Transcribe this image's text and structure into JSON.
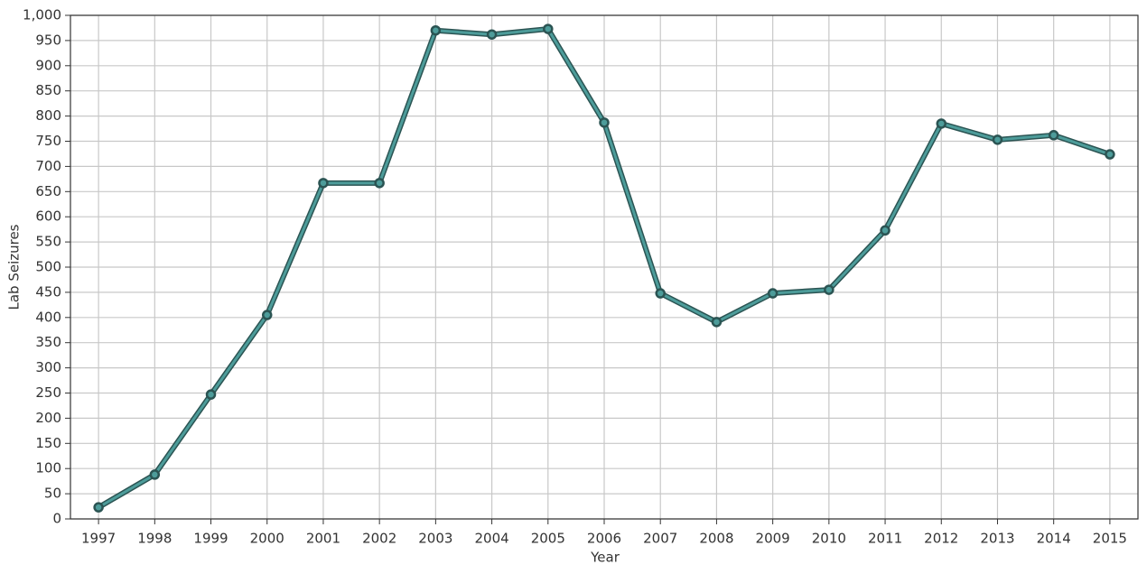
{
  "chart_data": {
    "type": "line",
    "x_label": "Year",
    "y_label": "Lab Seizures",
    "x": [
      1997,
      1998,
      1999,
      2000,
      2001,
      2002,
      2003,
      2004,
      2005,
      2006,
      2007,
      2008,
      2009,
      2010,
      2011,
      2012,
      2013,
      2014,
      2015
    ],
    "series": [
      {
        "name": "Lab Seizures",
        "color": "#4d9c9a",
        "edge_color": "#2b5453",
        "values": [
          23,
          88,
          247,
          405,
          667,
          667,
          970,
          962,
          973,
          787,
          448,
          391,
          448,
          455,
          573,
          785,
          753,
          762,
          724
        ]
      }
    ],
    "xlim": [
      1996.5,
      2015.5
    ],
    "xticks": [
      1997,
      1998,
      1999,
      2000,
      2001,
      2002,
      2003,
      2004,
      2005,
      2006,
      2007,
      2008,
      2009,
      2010,
      2011,
      2012,
      2013,
      2014,
      2015
    ],
    "ylim": [
      0,
      1000
    ],
    "yticks": [
      0,
      50,
      100,
      150,
      200,
      250,
      300,
      350,
      400,
      450,
      500,
      550,
      600,
      650,
      700,
      750,
      800,
      850,
      900,
      950,
      {
        "value": 1000,
        "label": "1,000"
      }
    ],
    "grid": true,
    "legend": false
  }
}
